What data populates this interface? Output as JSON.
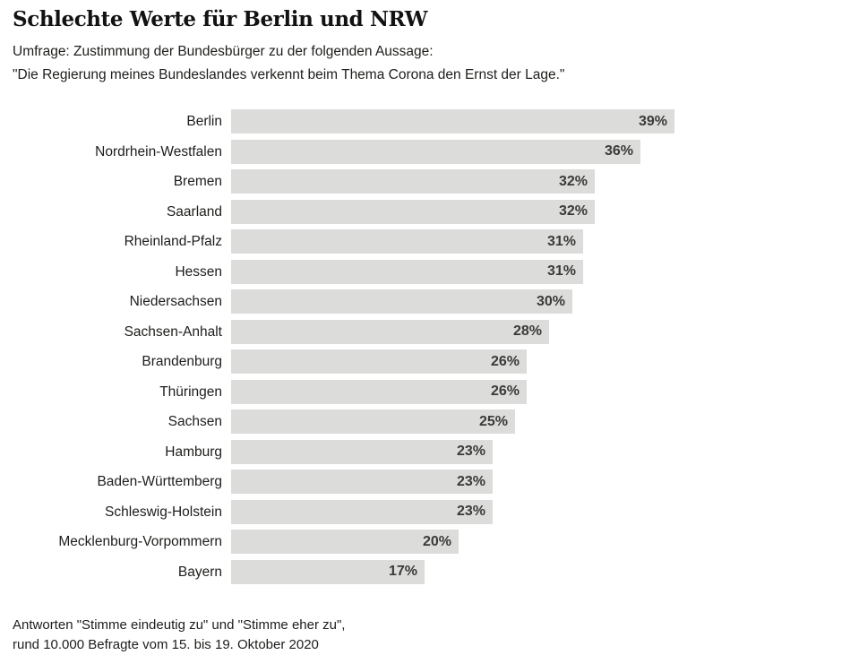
{
  "header": {
    "title": "Schlechte Werte für Berlin und NRW",
    "subtitle_line1": "Umfrage: Zustimmung der Bundesbürger zu der folgenden Aussage:",
    "subtitle_line2": "\"Die Regierung meines Bundeslandes verkennt beim Thema Corona den Ernst der Lage.\""
  },
  "chart_data": {
    "type": "bar",
    "orientation": "horizontal",
    "title": "Schlechte Werte für Berlin und NRW",
    "categories": [
      "Berlin",
      "Nordrhein-Westfalen",
      "Bremen",
      "Saarland",
      "Rheinland-Pfalz",
      "Hessen",
      "Niedersachsen",
      "Sachsen-Anhalt",
      "Brandenburg",
      "Thüringen",
      "Sachsen",
      "Hamburg",
      "Baden-Württemberg",
      "Schleswig-Holstein",
      "Mecklenburg-Vorpommern",
      "Bayern"
    ],
    "values": [
      39,
      36,
      32,
      32,
      31,
      31,
      30,
      28,
      26,
      26,
      25,
      23,
      23,
      23,
      20,
      17
    ],
    "unit": "%",
    "xlim": [
      0,
      39
    ],
    "grid": false,
    "legend": false,
    "bar_color": "#dcdcda",
    "value_label_color": "#3a3a38",
    "value_labels_inside": true
  },
  "footer": {
    "line1": "Antworten \"Stimme eindeutig zu\" und \"Stimme eher zu\",",
    "line2": "rund 10.000 Befragte vom 15. bis 19. Oktober 2020"
  }
}
